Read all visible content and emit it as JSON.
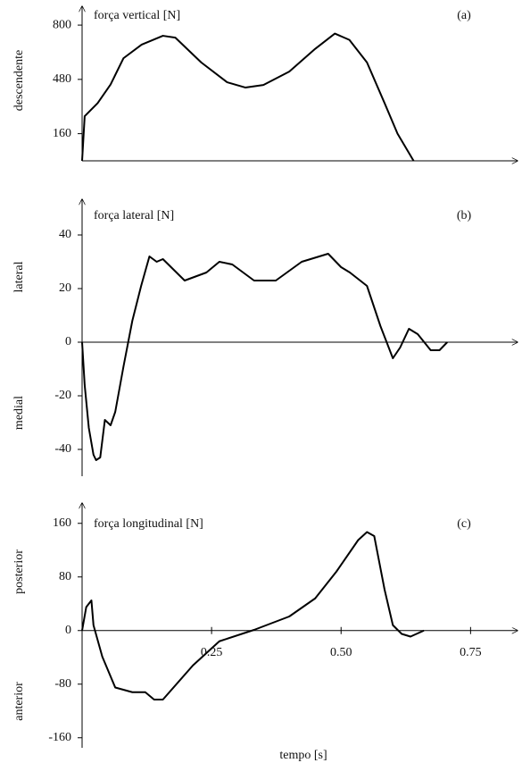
{
  "chart_data": [
    {
      "type": "line",
      "title": "força vertical [N]",
      "panel_label": "(a)",
      "ylabel": "descendente",
      "xlim": [
        0,
        0.82
      ],
      "ylim": [
        0,
        890
      ],
      "yticks": [
        160,
        480,
        800
      ],
      "series": [
        {
          "color": "#000000",
          "x": [
            0,
            0.005,
            0.03,
            0.055,
            0.08,
            0.115,
            0.156,
            0.18,
            0.23,
            0.28,
            0.315,
            0.35,
            0.4,
            0.45,
            0.488,
            0.516,
            0.55,
            0.584,
            0.609,
            0.64
          ],
          "values": [
            0,
            263,
            340,
            450,
            605,
            685,
            737,
            726,
            580,
            463,
            432,
            447,
            526,
            660,
            750,
            713,
            580,
            340,
            160,
            0
          ]
        }
      ]
    },
    {
      "type": "line",
      "title": "força lateral [N]",
      "panel_label": "(b)",
      "ylabel_positive": "lateral",
      "ylabel_negative": "medial",
      "xlim": [
        0,
        0.82
      ],
      "ylim": [
        -50,
        52
      ],
      "yticks": [
        -40,
        -20,
        0,
        20,
        40
      ],
      "series": [
        {
          "color": "#000000",
          "x": [
            0,
            0.005,
            0.013,
            0.022,
            0.027,
            0.035,
            0.044,
            0.055,
            0.064,
            0.08,
            0.097,
            0.114,
            0.13,
            0.144,
            0.156,
            0.198,
            0.24,
            0.265,
            0.29,
            0.332,
            0.374,
            0.424,
            0.475,
            0.5,
            0.517,
            0.55,
            0.576,
            0.6,
            0.614,
            0.631,
            0.648,
            0.673,
            0.69,
            0.705
          ],
          "values": [
            0,
            -16,
            -32,
            -42,
            -44,
            -43,
            -29,
            -31,
            -26,
            -9,
            8,
            21,
            32,
            30,
            31,
            23,
            26,
            30,
            29,
            23,
            23,
            30,
            33,
            28,
            26,
            21,
            6,
            -6,
            -2,
            5,
            3,
            -3,
            -3,
            0
          ]
        }
      ]
    },
    {
      "type": "line",
      "title": "força longitudinal [N]",
      "panel_label": "(c)",
      "ylabel_positive": "posterior",
      "ylabel_negative": "anterior",
      "xlabel": "tempo [s]",
      "xlim": [
        0,
        0.82
      ],
      "ylim": [
        -175,
        185
      ],
      "yticks": [
        -160,
        -80,
        0,
        80,
        160
      ],
      "xticks": [
        0.25,
        {
          "value": 0.5,
          "label": "0.50"
        },
        0.75
      ],
      "series": [
        {
          "color": "#000000",
          "x": [
            0,
            0.008,
            0.018,
            0.022,
            0.039,
            0.064,
            0.097,
            0.122,
            0.139,
            0.156,
            0.214,
            0.265,
            0.332,
            0.4,
            0.45,
            0.491,
            0.533,
            0.55,
            0.564,
            0.584,
            0.6,
            0.617,
            0.634,
            0.66
          ],
          "values": [
            0,
            35,
            45,
            8,
            -39,
            -85,
            -92,
            -92,
            -103,
            -103,
            -52,
            -16,
            1,
            21,
            48,
            88,
            135,
            147,
            141,
            61,
            8,
            -5,
            -9,
            0
          ]
        }
      ]
    }
  ]
}
